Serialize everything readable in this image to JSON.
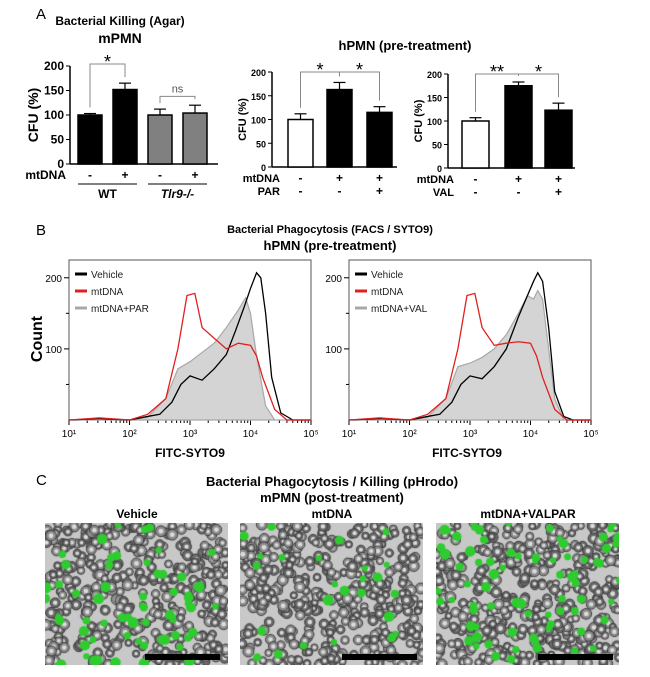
{
  "panels": {
    "a": "A",
    "b": "B",
    "c": "C"
  },
  "panel_a": {
    "title": "Bacterial Killing (Agar)",
    "sub_left": "mPMN",
    "sub_right": "hPMN (pre-treatment)"
  },
  "panel_b": {
    "title": "Bacterial Phagocytosis (FACS / SYTO9)",
    "subtitle": "hPMN (pre-treatment)",
    "ylabel": "Count",
    "xlabel": "FITC-SYTO9"
  },
  "panel_c": {
    "title": "Bacterial Phagocytosis / Killing (pHrodo)",
    "subtitle": "mPMN (post-treatment)",
    "images": [
      "Vehicle",
      "mtDNA",
      "mtDNA+VALPAR"
    ]
  },
  "chart_data": [
    {
      "type": "bar",
      "ylabel": "CFU (%)",
      "ylim": [
        0,
        200
      ],
      "yticks": [
        0,
        50,
        100,
        150,
        200
      ],
      "values": [
        100,
        152,
        100,
        104
      ],
      "errors": [
        3,
        13,
        12,
        16
      ],
      "fills": [
        "#000000",
        "#000000",
        "#808080",
        "#808080"
      ],
      "rows": [
        {
          "label": "mtDNA",
          "values": [
            "-",
            "+",
            "-",
            "+"
          ]
        }
      ],
      "groups": [
        "WT",
        "Tlr9-/-"
      ],
      "annotations": [
        {
          "from": 0,
          "to": 1,
          "text": "*"
        },
        {
          "from": 2,
          "to": 3,
          "text": "ns"
        }
      ]
    },
    {
      "type": "bar",
      "ylabel": "CFU (%)",
      "ylim": [
        0,
        200
      ],
      "yticks": [
        0,
        50,
        100,
        150,
        200
      ],
      "values": [
        100,
        163,
        115
      ],
      "errors": [
        12,
        15,
        12
      ],
      "fills": [
        "#ffffff",
        "#000000",
        "#000000"
      ],
      "rows": [
        {
          "label": "mtDNA",
          "values": [
            "-",
            "+",
            "+"
          ]
        },
        {
          "label": "PAR",
          "values": [
            "-",
            "-",
            "+"
          ]
        }
      ],
      "annotations": [
        {
          "from": 0,
          "to": 1,
          "text": "*"
        },
        {
          "from": 1,
          "to": 2,
          "text": "*"
        }
      ]
    },
    {
      "type": "bar",
      "ylabel": "CFU (%)",
      "ylim": [
        0,
        200
      ],
      "yticks": [
        0,
        50,
        100,
        150,
        200
      ],
      "values": [
        100,
        175,
        123
      ],
      "errors": [
        7,
        8,
        15
      ],
      "fills": [
        "#ffffff",
        "#000000",
        "#000000"
      ],
      "rows": [
        {
          "label": "mtDNA",
          "values": [
            "-",
            "+",
            "+"
          ]
        },
        {
          "label": "VAL",
          "values": [
            "-",
            "-",
            "+"
          ]
        }
      ],
      "annotations": [
        {
          "from": 0,
          "to": 1,
          "text": "**"
        },
        {
          "from": 1,
          "to": 2,
          "text": "*"
        }
      ]
    },
    {
      "type": "area",
      "xscale": "log",
      "xlim": [
        1,
        5
      ],
      "ylim": [
        0,
        225
      ],
      "yticks": [
        100,
        200
      ],
      "xticks": [
        "10¹",
        "10²",
        "10³",
        "10⁴",
        "10⁵"
      ],
      "legend": "top-left",
      "series": [
        {
          "name": "Vehicle",
          "color": "#000000",
          "filled": false,
          "points": [
            [
              1,
              0
            ],
            [
              1.5,
              2
            ],
            [
              2,
              0
            ],
            [
              2.3,
              5
            ],
            [
              2.5,
              8
            ],
            [
              2.7,
              25
            ],
            [
              2.85,
              50
            ],
            [
              3,
              62
            ],
            [
              3.2,
              56
            ],
            [
              3.4,
              72
            ],
            [
              3.6,
              92
            ],
            [
              3.75,
              125
            ],
            [
              3.9,
              160
            ],
            [
              4,
              185
            ],
            [
              4.1,
              207
            ],
            [
              4.17,
              200
            ],
            [
              4.25,
              150
            ],
            [
              4.35,
              60
            ],
            [
              4.5,
              10
            ],
            [
              4.7,
              0
            ],
            [
              5,
              0
            ]
          ]
        },
        {
          "name": "mtDNA",
          "color": "#e02020",
          "filled": false,
          "points": [
            [
              1,
              0
            ],
            [
              1.5,
              3
            ],
            [
              2,
              0
            ],
            [
              2.3,
              8
            ],
            [
              2.6,
              30
            ],
            [
              2.8,
              100
            ],
            [
              2.95,
              175
            ],
            [
              3.08,
              178
            ],
            [
              3.2,
              130
            ],
            [
              3.4,
              115
            ],
            [
              3.6,
              100
            ],
            [
              3.8,
              108
            ],
            [
              4,
              105
            ],
            [
              4.1,
              90
            ],
            [
              4.2,
              60
            ],
            [
              4.4,
              15
            ],
            [
              4.6,
              0
            ],
            [
              5,
              0
            ]
          ]
        },
        {
          "name": "mtDNA+PAR",
          "color": "#a8a8a8",
          "filled": true,
          "points": [
            [
              1,
              0
            ],
            [
              2,
              0
            ],
            [
              2.3,
              4
            ],
            [
              2.6,
              30
            ],
            [
              2.8,
              72
            ],
            [
              3,
              82
            ],
            [
              3.2,
              95
            ],
            [
              3.4,
              108
            ],
            [
              3.6,
              130
            ],
            [
              3.8,
              155
            ],
            [
              3.92,
              172
            ],
            [
              4,
              150
            ],
            [
              4.1,
              90
            ],
            [
              4.25,
              20
            ],
            [
              4.4,
              0
            ],
            [
              5,
              0
            ]
          ]
        }
      ]
    },
    {
      "type": "area",
      "xscale": "log",
      "xlim": [
        1,
        5
      ],
      "ylim": [
        0,
        225
      ],
      "yticks": [
        100,
        200
      ],
      "xticks": [
        "10¹",
        "10²",
        "10³",
        "10⁴",
        "10⁵"
      ],
      "legend": "top-left",
      "series": [
        {
          "name": "Vehicle",
          "color": "#000000",
          "filled": false,
          "points": [
            [
              1,
              0
            ],
            [
              1.5,
              2
            ],
            [
              2,
              0
            ],
            [
              2.3,
              5
            ],
            [
              2.5,
              8
            ],
            [
              2.7,
              25
            ],
            [
              2.85,
              50
            ],
            [
              3,
              62
            ],
            [
              3.2,
              58
            ],
            [
              3.4,
              75
            ],
            [
              3.6,
              100
            ],
            [
              3.8,
              145
            ],
            [
              3.95,
              175
            ],
            [
              4.05,
              195
            ],
            [
              4.12,
              207
            ],
            [
              4.2,
              195
            ],
            [
              4.3,
              130
            ],
            [
              4.4,
              40
            ],
            [
              4.55,
              5
            ],
            [
              4.7,
              0
            ],
            [
              5,
              0
            ]
          ]
        },
        {
          "name": "mtDNA",
          "color": "#e02020",
          "filled": false,
          "points": [
            [
              1,
              0
            ],
            [
              1.5,
              3
            ],
            [
              2,
              0
            ],
            [
              2.3,
              8
            ],
            [
              2.6,
              30
            ],
            [
              2.8,
              100
            ],
            [
              2.95,
              175
            ],
            [
              3.08,
              178
            ],
            [
              3.2,
              130
            ],
            [
              3.4,
              105
            ],
            [
              3.6,
              108
            ],
            [
              3.8,
              110
            ],
            [
              4,
              108
            ],
            [
              4.1,
              90
            ],
            [
              4.2,
              60
            ],
            [
              4.4,
              15
            ],
            [
              4.6,
              0
            ],
            [
              5,
              0
            ]
          ]
        },
        {
          "name": "mtDNA+VAL",
          "color": "#a8a8a8",
          "filled": true,
          "points": [
            [
              1,
              0
            ],
            [
              2,
              0
            ],
            [
              2.3,
              4
            ],
            [
              2.6,
              30
            ],
            [
              2.8,
              75
            ],
            [
              3,
              80
            ],
            [
              3.2,
              88
            ],
            [
              3.4,
              100
            ],
            [
              3.6,
              120
            ],
            [
              3.8,
              150
            ],
            [
              3.95,
              175
            ],
            [
              4.05,
              170
            ],
            [
              4.12,
              182
            ],
            [
              4.2,
              170
            ],
            [
              4.3,
              100
            ],
            [
              4.4,
              30
            ],
            [
              4.55,
              0
            ],
            [
              5,
              0
            ]
          ]
        }
      ]
    }
  ]
}
